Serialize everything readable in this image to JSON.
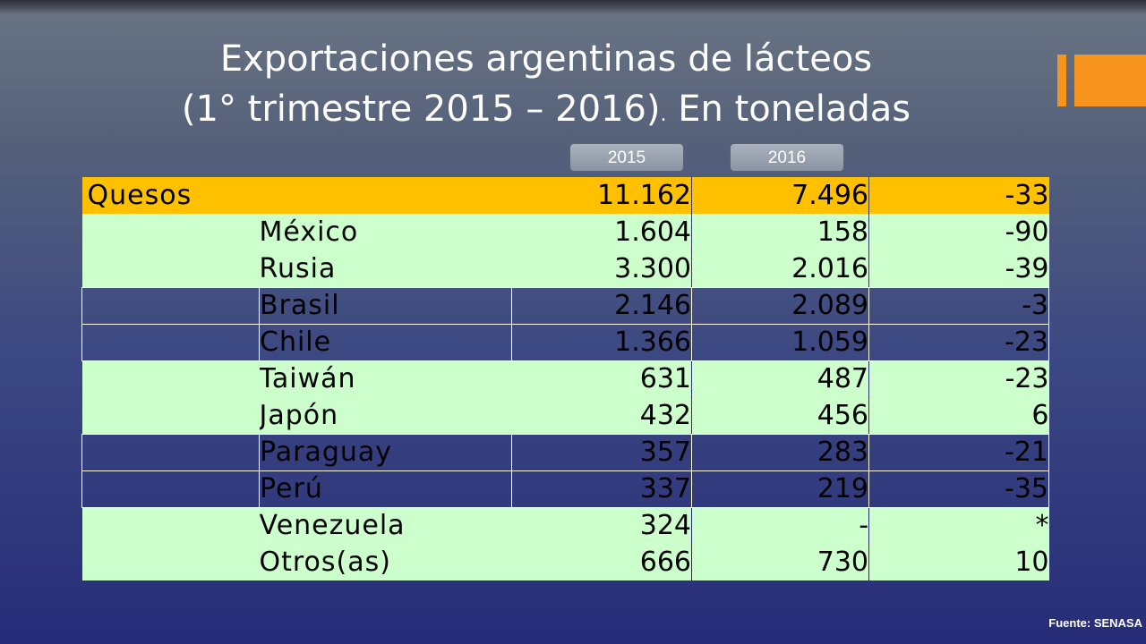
{
  "title": {
    "line1": "Exportaciones argentinas de lácteos",
    "line2_main": "(1° trimestre 2015 – 2016)",
    "line2_sep": ".",
    "line2_tail": " En toneladas"
  },
  "year_tabs": [
    "2015",
    "2016"
  ],
  "table": {
    "header_row": {
      "label": "Quesos",
      "v2015": "11.162",
      "v2016": "7.496",
      "var": "-33"
    },
    "rows": [
      {
        "country": "México",
        "v2015": "1.604",
        "v2016": "158",
        "var": "-90"
      },
      {
        "country": "Rusia",
        "v2015": "3.300",
        "v2016": "2.016",
        "var": "-39"
      },
      {
        "country": "Brasil",
        "v2015": "2.146",
        "v2016": "2.089",
        "var": "-3"
      },
      {
        "country": "Chile",
        "v2015": "1.366",
        "v2016": "1.059",
        "var": "-23"
      },
      {
        "country": "Taiwán",
        "v2015": "631",
        "v2016": "487",
        "var": "-23"
      },
      {
        "country": "Japón",
        "v2015": "432",
        "v2016": "456",
        "var": "6"
      },
      {
        "country": "Paraguay",
        "v2015": "357",
        "v2016": "283",
        "var": "-21"
      },
      {
        "country": "Perú",
        "v2015": "337",
        "v2016": "219",
        "var": "-35"
      },
      {
        "country": "Venezuela",
        "v2015": "324",
        "v2016": "-",
        "var": "*"
      },
      {
        "country": "Otros(as)",
        "v2015": "666",
        "v2016": "730",
        "var": "10"
      }
    ]
  },
  "colors": {
    "accent": "#f7941d",
    "header_row": "#ffc000",
    "row_green": "#ccffcc"
  },
  "source": "Fuente: SENASA"
}
